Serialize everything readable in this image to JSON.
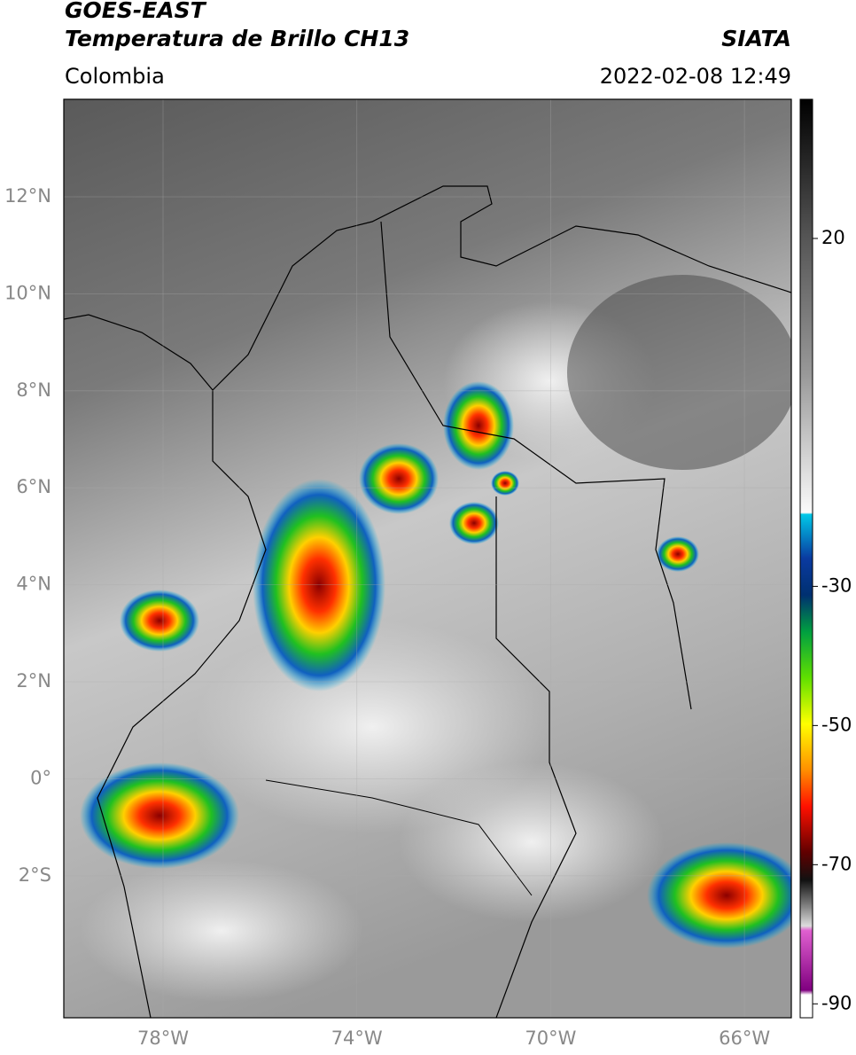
{
  "header": {
    "line1": "GOES-EAST",
    "line2": "Temperatura de Brillo CH13",
    "source": "SIATA",
    "region": "Colombia",
    "datetime": "2022-02-08 12:49"
  },
  "map": {
    "lat_labels": [
      "12°N",
      "10°N",
      "8°N",
      "6°N",
      "4°N",
      "2°N",
      "0°",
      "2°S"
    ],
    "lon_labels": [
      "78°W",
      "74°W",
      "70°W",
      "66°W"
    ]
  },
  "colorbar": {
    "lim": [
      -92,
      40
    ],
    "ticks": [
      20,
      -30,
      -50,
      -70,
      -90
    ]
  }
}
